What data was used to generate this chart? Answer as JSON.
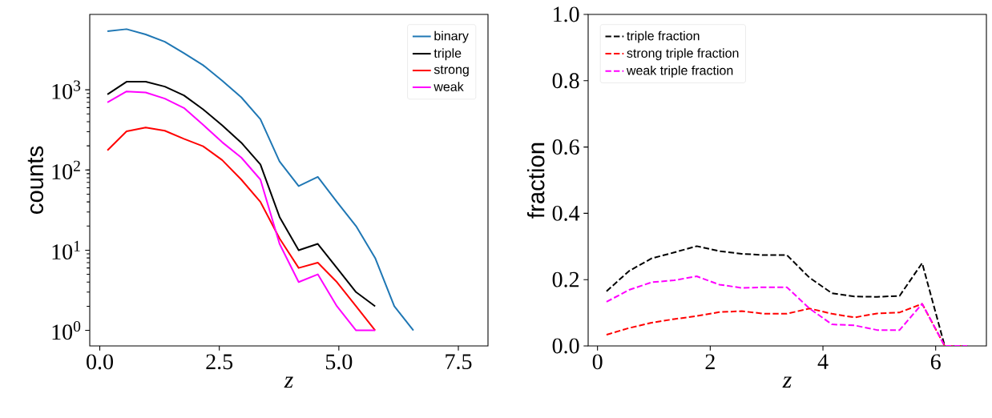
{
  "chart_data": [
    {
      "type": "line",
      "xlabel": "z",
      "ylabel": "counts",
      "log": "y",
      "legend": "top right",
      "xlim": [
        -0.21,
        8.12
      ],
      "ylim": [
        0.64,
        8710
      ],
      "xticks": [
        {
          "value": 0,
          "label": "0.0"
        },
        {
          "value": 2.5,
          "label": "2.5"
        },
        {
          "value": 5,
          "label": "5.0"
        },
        {
          "value": 7.5,
          "label": "7.5"
        }
      ],
      "yticks": [
        {
          "value": 1,
          "label": "10$^{0}$"
        },
        {
          "value": 10,
          "label": "10$^{1}$"
        },
        {
          "value": 100,
          "label": "10$^{2}$"
        },
        {
          "value": 1000,
          "label": "10$^{3}$"
        }
      ],
      "x": [
        0.16,
        0.56,
        0.96,
        1.36,
        1.76,
        2.16,
        2.56,
        2.96,
        3.36,
        3.76,
        4.16,
        4.56,
        4.96,
        5.36,
        5.76,
        6.16,
        6.56
      ],
      "series": [
        {
          "name": "binary",
          "color": "#1f77b4",
          "values": [
            5370,
            5710,
            4900,
            3980,
            2860,
            2030,
            1300,
            806,
            430,
            128,
            63,
            82,
            40,
            20,
            8,
            2,
            1
          ]
        },
        {
          "name": "triple",
          "color": "#000000",
          "values": [
            878,
            1260,
            1260,
            1097,
            851,
            571,
            360,
            219,
            117,
            26,
            10,
            12,
            6,
            3,
            2,
            null,
            null
          ]
        },
        {
          "name": "strong",
          "color": "#ff0000",
          "values": [
            176,
            304,
            339,
            309,
            245,
            198,
            133,
            76,
            40,
            14,
            6,
            7,
            4,
            2,
            1,
            null,
            null
          ]
        },
        {
          "name": "weak",
          "color": "#ff00ff",
          "values": [
            697,
            955,
            926,
            777,
            593,
            366,
            222,
            143,
            76,
            12,
            4,
            5,
            2,
            1,
            1,
            null,
            null
          ]
        }
      ]
    },
    {
      "type": "line",
      "xlabel": "z",
      "ylabel": "fraction",
      "legend": "top left",
      "line_style": "dashed",
      "xlim": [
        -0.166,
        6.9
      ],
      "ylim": [
        0,
        1
      ],
      "xticks": [
        0,
        2,
        4,
        6
      ],
      "yticks": [
        {
          "value": 0,
          "label": "0.0"
        },
        {
          "value": 0.2,
          "label": "0.2"
        },
        {
          "value": 0.4,
          "label": "0.4"
        },
        {
          "value": 0.6,
          "label": "0.6"
        },
        {
          "value": 0.8,
          "label": "0.8"
        },
        {
          "value": 1,
          "label": "1.0"
        }
      ],
      "x": [
        0.16,
        0.56,
        0.96,
        1.36,
        1.76,
        2.16,
        2.56,
        2.96,
        3.36,
        3.76,
        4.16,
        4.56,
        4.96,
        5.36,
        5.76,
        6.16,
        6.56
      ],
      "series": [
        {
          "name": "triple fraction",
          "color": "#000000",
          "values": [
            0.165,
            0.226,
            0.264,
            0.282,
            0.301,
            0.286,
            0.278,
            0.274,
            0.274,
            0.206,
            0.159,
            0.149,
            0.148,
            0.151,
            0.25,
            0,
            0
          ]
        },
        {
          "name": "strong triple fraction",
          "color": "#ff0000",
          "values": [
            0.034,
            0.054,
            0.07,
            0.081,
            0.09,
            0.102,
            0.105,
            0.097,
            0.097,
            0.113,
            0.097,
            0.086,
            0.098,
            0.101,
            0.127,
            0,
            0
          ]
        },
        {
          "name": "weak triple fraction",
          "color": "#ff00ff",
          "values": [
            0.133,
            0.169,
            0.192,
            0.198,
            0.21,
            0.185,
            0.175,
            0.177,
            0.177,
            0.113,
            0.065,
            0.062,
            0.048,
            0.048,
            0.127,
            0,
            0
          ]
        }
      ]
    }
  ]
}
